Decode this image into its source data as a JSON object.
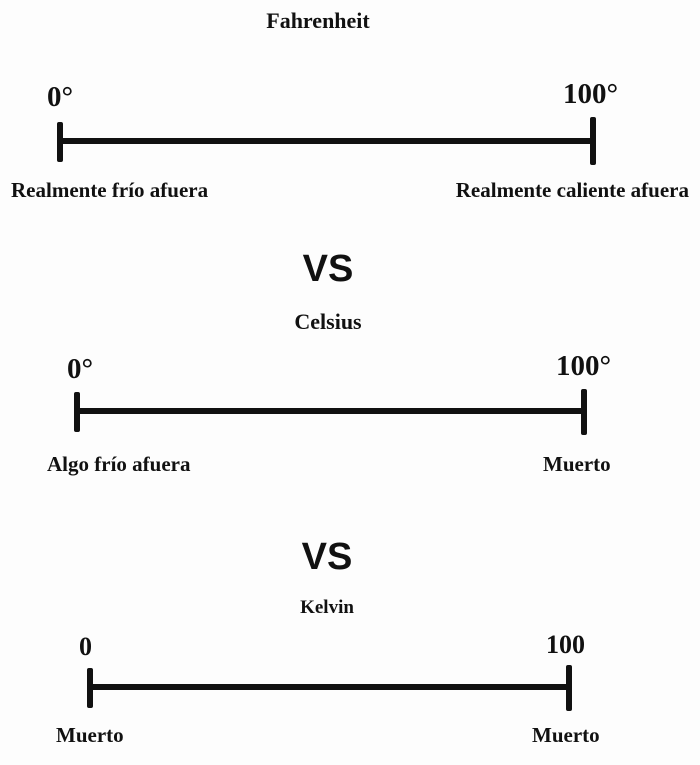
{
  "scales": [
    {
      "title": "Fahrenheit",
      "min_label": "0°",
      "max_label": "100°",
      "min_desc": "Realmente frío afuera",
      "max_desc": "Realmente caliente afuera"
    },
    {
      "title": "Celsius",
      "min_label": "0°",
      "max_label": "100°",
      "min_desc": "Algo frío afuera",
      "max_desc": "Muerto"
    },
    {
      "title": "Kelvin",
      "min_label": "0",
      "max_label": "100",
      "min_desc": "Muerto",
      "max_desc": "Muerto"
    }
  ],
  "separator": "VS"
}
